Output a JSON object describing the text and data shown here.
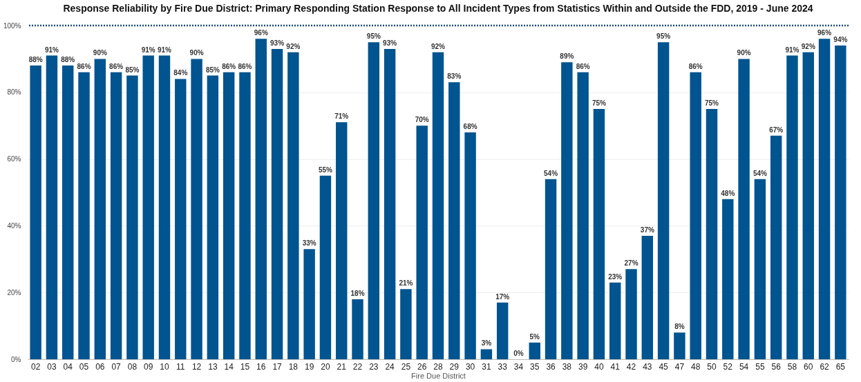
{
  "chart_data": {
    "type": "bar",
    "title": "Response Reliability by Fire Due District: Primary Responding Station Response to All Incident Types from Statistics Within and Outside the FDD, 2019 - June 2024",
    "xlabel": "Fire Due District",
    "categories": [
      "02",
      "03",
      "04",
      "05",
      "06",
      "07",
      "08",
      "09",
      "10",
      "11",
      "12",
      "13",
      "14",
      "15",
      "16",
      "17",
      "18",
      "19",
      "20",
      "21",
      "22",
      "23",
      "24",
      "25",
      "26",
      "28",
      "29",
      "30",
      "31",
      "33",
      "34",
      "35",
      "36",
      "38",
      "39",
      "40",
      "41",
      "42",
      "43",
      "45",
      "47",
      "48",
      "50",
      "52",
      "54",
      "55",
      "56",
      "58",
      "60",
      "62",
      "65"
    ],
    "values": [
      88,
      91,
      88,
      86,
      90,
      86,
      85,
      91,
      91,
      84,
      90,
      85,
      86,
      86,
      96,
      93,
      92,
      33,
      55,
      71,
      18,
      95,
      93,
      21,
      70,
      92,
      83,
      68,
      3,
      17,
      0,
      5,
      54,
      89,
      86,
      75,
      23,
      27,
      37,
      95,
      8,
      86,
      75,
      48,
      90,
      54,
      67,
      91,
      92,
      96,
      94
    ],
    "value_labels": [
      "88%",
      "91%",
      "88%",
      "86%",
      "90%",
      "86%",
      "85%",
      "91%",
      "91%",
      "84%",
      "90%",
      "85%",
      "86%",
      "86%",
      "96%",
      "93%",
      "92%",
      "33%",
      "55%",
      "71%",
      "18%",
      "95%",
      "93%",
      "21%",
      "70%",
      "92%",
      "83%",
      "68%",
      "3%",
      "17%",
      "0%",
      "5%",
      "54%",
      "89%",
      "86%",
      "75%",
      "23%",
      "27%",
      "37%",
      "95%",
      "8%",
      "86%",
      "75%",
      "48%",
      "90%",
      "54%",
      "67%",
      "91%",
      "92%",
      "96%",
      "94%"
    ],
    "color": "#00548f",
    "ylim": [
      0,
      100
    ],
    "yticks": [
      {
        "value": 0,
        "label": "0%"
      },
      {
        "value": 20,
        "label": "20%"
      },
      {
        "value": 40,
        "label": "40%"
      },
      {
        "value": 60,
        "label": "60%"
      },
      {
        "value": 80,
        "label": "80%"
      },
      {
        "value": 100,
        "label": "100%"
      }
    ],
    "grid": "y",
    "ref_lines": [
      {
        "axis": "y",
        "value": 100,
        "color": "#1f4e79",
        "line_style": "dotted"
      }
    ]
  }
}
